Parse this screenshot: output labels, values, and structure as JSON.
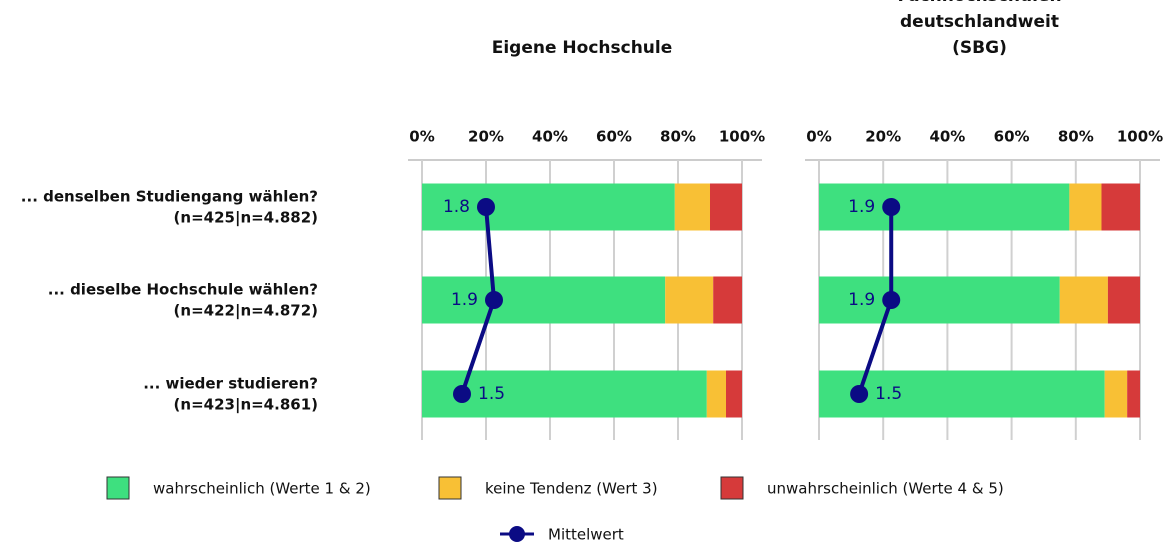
{
  "chart_data": [
    {
      "type": "bar",
      "orientation": "horizontal",
      "stacked": true,
      "title": [
        "Eigene Hochschule"
      ],
      "categories": [
        "... denselben Studiengang wählen?",
        "... dieselbe Hochschule wählen?",
        "... wieder studieren?"
      ],
      "sample_sizes": [
        "(n=425|n=4.882)",
        "(n=422|n=4.872)",
        "(n=423|n=4.861)"
      ],
      "xlim": [
        0,
        100
      ],
      "xticks": [
        {
          "value": 0,
          "label": "0%"
        },
        {
          "value": 20,
          "label": "20%"
        },
        {
          "value": 40,
          "label": "40%"
        },
        {
          "value": 60,
          "label": "60%"
        },
        {
          "value": 80,
          "label": "80%"
        },
        {
          "value": 100,
          "label": "100%"
        }
      ],
      "grid": true,
      "series": [
        {
          "name": "wahrscheinlich (Werte 1 & 2)",
          "color": "#3ee07f",
          "values": [
            79,
            76,
            89
          ]
        },
        {
          "name": "keine Tendenz (Wert 3)",
          "color": "#f8c035",
          "values": [
            11,
            15,
            6
          ]
        },
        {
          "name": "unwahrscheinlich (Werte 4 & 5)",
          "color": "#d63a3a",
          "values": [
            10,
            9,
            5
          ]
        }
      ],
      "mean": {
        "name": "Mittelwert",
        "color": "#0b0b84",
        "values": [
          1.8,
          1.9,
          1.5
        ],
        "axis": "x2"
      },
      "x2lim": [
        1,
        5
      ]
    },
    {
      "type": "bar",
      "orientation": "horizontal",
      "stacked": true,
      "title": [
        "Fachhochschulen",
        "deutschlandweit",
        "(SBG)"
      ],
      "xlim": [
        0,
        100
      ],
      "xticks": [
        {
          "value": 0,
          "label": "0%"
        },
        {
          "value": 20,
          "label": "20%"
        },
        {
          "value": 40,
          "label": "40%"
        },
        {
          "value": 60,
          "label": "60%"
        },
        {
          "value": 80,
          "label": "80%"
        },
        {
          "value": 100,
          "label": "100%"
        }
      ],
      "grid": true,
      "series": [
        {
          "color": "#3ee07f",
          "values": [
            78,
            75,
            89
          ]
        },
        {
          "color": "#f8c035",
          "values": [
            10,
            15,
            7
          ]
        },
        {
          "color": "#d63a3a",
          "values": [
            12,
            10,
            4
          ]
        }
      ],
      "mean": {
        "color": "#0b0b84",
        "values": [
          1.9,
          1.9,
          1.5
        ],
        "axis": "x2"
      },
      "x2lim": [
        1,
        5
      ]
    }
  ]
}
